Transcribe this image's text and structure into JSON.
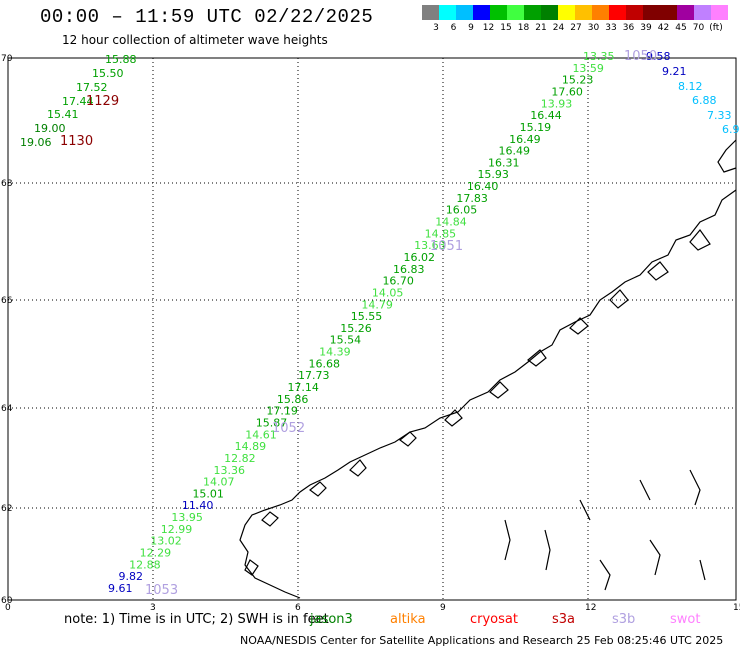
{
  "header": {
    "title": "00:00 – 11:59 UTC 02/22/2025",
    "subtitle": "12 hour collection of altimeter wave heights"
  },
  "colorbar": {
    "unit": "(ft)",
    "colors": [
      "#808080",
      "#00ffff",
      "#00bfff",
      "#0000ff",
      "#00c000",
      "#40ff40",
      "#00a000",
      "#008000",
      "#ffff00",
      "#ffc000",
      "#ff8000",
      "#ff0000",
      "#c00000",
      "#800000",
      "#800000",
      "#a000a0",
      "#c080ff",
      "#ff80ff",
      "#000000"
    ],
    "labels": [
      "3",
      "6",
      "9",
      "12",
      "15",
      "18",
      "21",
      "24",
      "27",
      "30",
      "33",
      "36",
      "39",
      "42",
      "45",
      "70"
    ]
  },
  "axes": {
    "lat_ticks": [
      "70",
      "68",
      "66",
      "64",
      "62",
      "60"
    ],
    "lon_ticks": [
      "0",
      "3",
      "6",
      "9",
      "12",
      "15"
    ]
  },
  "passes": [
    {
      "label": "1129",
      "color": "#8b0000"
    },
    {
      "label": "1130",
      "color": "#8b0000"
    },
    {
      "label": "1051",
      "color": "#b0a0e0"
    },
    {
      "label": "1052",
      "color": "#b0a0e0"
    },
    {
      "label": "1053",
      "color": "#b0a0e0"
    },
    {
      "label": "1050",
      "color": "#b0a0e0"
    }
  ],
  "track_values": {
    "left_track": [
      "15.88",
      "15.50",
      "17.52",
      "17.44",
      "15.41",
      "19.00",
      "19.06"
    ],
    "main_track": [
      "13.35",
      "13.59",
      "15.23",
      "17.60",
      "13.93",
      "16.44",
      "15.19",
      "16.49",
      "16.49",
      "16.31",
      "15.93",
      "16.40",
      "17.83",
      "16.05",
      "14.84",
      "14.85",
      "13.63",
      "16.02",
      "16.83",
      "16.70",
      "14.05",
      "14.79",
      "15.55",
      "15.26",
      "15.54",
      "14.39",
      "16.68",
      "17.73",
      "17.14",
      "15.86",
      "17.19",
      "15.87",
      "14.61",
      "14.89",
      "12.82",
      "13.36",
      "14.07",
      "15.01",
      "11.40",
      "13.95",
      "12.99",
      "13.02",
      "12.29",
      "12.88",
      "9.82",
      "9.61"
    ],
    "right_track": [
      "9.58",
      "9.21",
      "8.12",
      "6.88",
      "7.33",
      "6.9"
    ]
  },
  "note": {
    "prefix": "note:  1) Time is in UTC; 2) SWH is in feet",
    "satellites": [
      {
        "name": "jason3",
        "color": "#008000"
      },
      {
        "name": "altika",
        "color": "#ff8000"
      },
      {
        "name": "cryosat",
        "color": "#ff0000"
      },
      {
        "name": "s3a",
        "color": "#c00000"
      },
      {
        "name": "s3b",
        "color": "#b0a0e0"
      },
      {
        "name": "swot",
        "color": "#ff80ff"
      }
    ]
  },
  "credit": "NOAA/NESDIS Center for Satellite Applications and Research    25 Feb 08:25:46 UTC 2025"
}
